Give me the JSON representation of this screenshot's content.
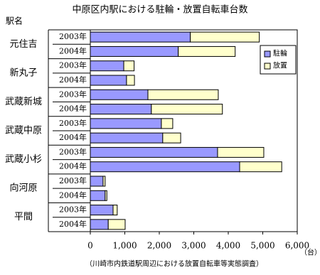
{
  "chart_data": {
    "type": "stacked-barh",
    "title": "中原区内駅における駐輪・放置自転車台数",
    "y_label": "駅名",
    "x_unit": "（台）",
    "source": "（川崎市内鉄道駅周辺における放置自転車等実態調査）",
    "groups": [
      "元住吉",
      "新丸子",
      "武蔵新城",
      "武蔵中原",
      "武蔵小杉",
      "向河原",
      "平間"
    ],
    "categories": [
      "2003年",
      "2004年",
      "2003年",
      "2004年",
      "2003年",
      "2004年",
      "2003年",
      "2004年",
      "2003年",
      "2004年",
      "2003年",
      "2004年",
      "2003年",
      "2004年"
    ],
    "series": [
      {
        "name": "駐輪",
        "color": "#9999ff",
        "values": [
          2900,
          2550,
          970,
          1050,
          1670,
          1770,
          2060,
          2100,
          3690,
          4330,
          370,
          430,
          660,
          520
        ]
      },
      {
        "name": "放置",
        "color": "#ffffcc",
        "values": [
          2000,
          1650,
          300,
          230,
          2040,
          2060,
          330,
          520,
          1340,
          1220,
          60,
          50,
          120,
          490
        ]
      }
    ],
    "xlim": [
      0,
      6000
    ],
    "xticks": [
      0,
      {
        "value": 1000,
        "label": "1,000"
      },
      {
        "value": 2000,
        "label": "2,000"
      },
      {
        "value": 3000,
        "label": "3,000"
      },
      {
        "value": 4000,
        "label": "4,000"
      },
      {
        "value": 5000,
        "label": "5,000"
      },
      {
        "value": 6000,
        "label": "6,000"
      }
    ],
    "legend": "right"
  }
}
